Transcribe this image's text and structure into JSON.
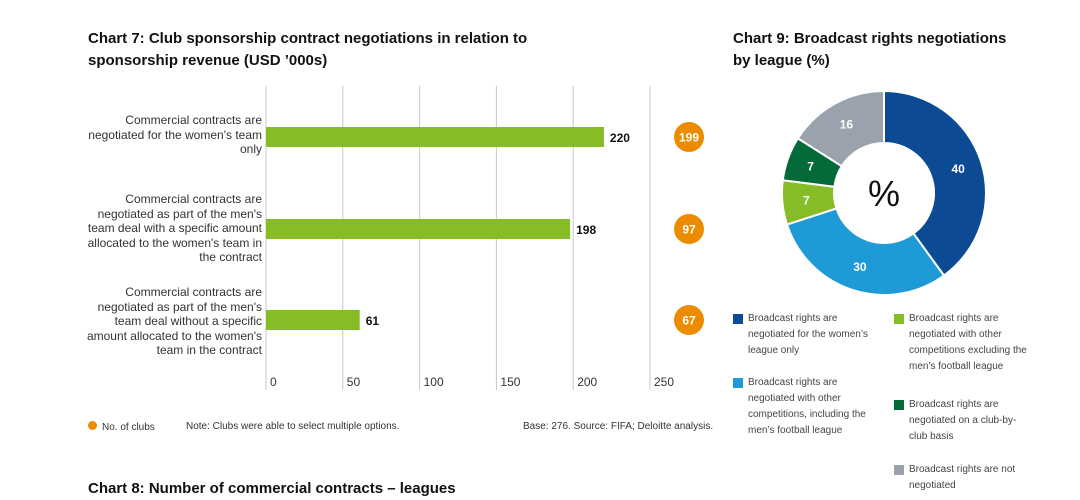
{
  "chart_data": [
    {
      "type": "bar",
      "title": "Chart 7: Club sponsorship contract negotiations in relation to sponsorship revenue (USD ’000s)",
      "title_lines": [
        "Chart 7: Club sponsorship contract negotiations in relation to",
        "sponsorship revenue (USD ’000s)"
      ],
      "categories": [
        "Commercial contracts are negotiated for the women's team only",
        "Commercial contracts are negotiated as part of the men's team deal with a specific amount allocated to the women's team in the contract",
        "Commercial contracts are negotiated as part of the men's team deal without a specific amount allocated to the women's team in the contract"
      ],
      "values": [
        220,
        198,
        61
      ],
      "clubs": [
        199,
        97,
        67
      ],
      "xlim": [
        0,
        250
      ],
      "xticks": [
        "0",
        "50",
        "100",
        "150",
        "200",
        "250"
      ],
      "legend": "No. of clubs",
      "note": "Note: Clubs were able to select multiple options.",
      "source": "Base: 276. Source: FIFA; Deloitte analysis.",
      "bar_color": "#86bc25",
      "dot_color": "#ed8b00"
    },
    {
      "type": "pie",
      "title_lines": [
        "Chart 9: Broadcast rights negotiations",
        "by league (%)"
      ],
      "center_label": "%",
      "slices": [
        {
          "label": "Broadcast rights are negotiated for the women’s league only",
          "value": 40,
          "color": "#0c4a94"
        },
        {
          "label": "Broadcast rights are negotiated with other competitions, including the men’s football league",
          "value": 30,
          "color": "#1e9ad6"
        },
        {
          "label": "Broadcast rights are negotiated with other competitions excluding the men’s football league",
          "value": 7,
          "color": "#86bc25"
        },
        {
          "label": "Broadcast rights are negotiated on a club-by-club basis",
          "value": 7,
          "color": "#046a38"
        },
        {
          "label": "Broadcast rights are not negotiated",
          "value": 16,
          "color": "#9aa3ad"
        }
      ]
    }
  ],
  "next_title": "Chart 8: Number of commercial contracts – leagues"
}
